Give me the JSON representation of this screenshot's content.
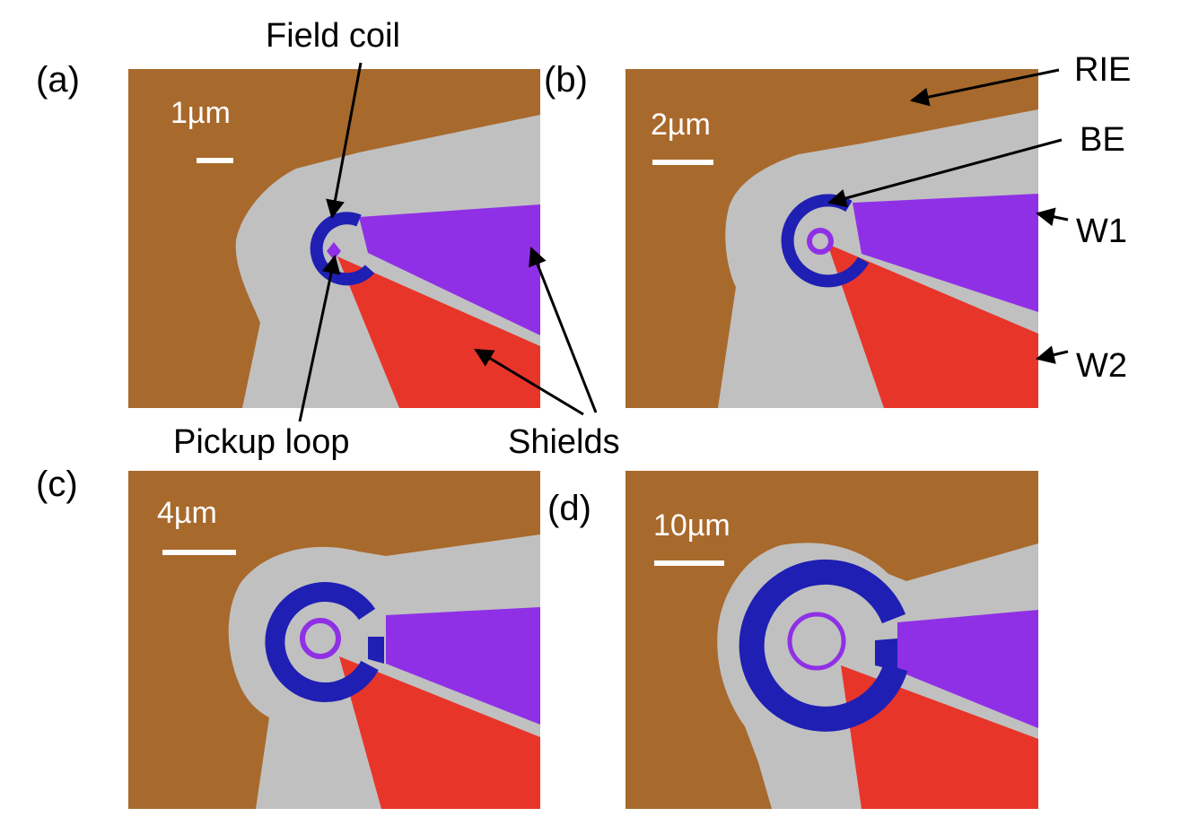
{
  "colors": {
    "rie": "#a8692c",
    "be": "#c0c0c0",
    "field_coil": "#1f1fb4",
    "w1": "#9030e6",
    "w2": "#e8352a",
    "scale_bar": "#ffffff"
  },
  "panels": [
    {
      "label": "(a)",
      "scale": "1µm"
    },
    {
      "label": "(b)",
      "scale": "2µm"
    },
    {
      "label": "(c)",
      "scale": "4µm"
    },
    {
      "label": "(d)",
      "scale": "10µm"
    }
  ],
  "annotations": {
    "field_coil": "Field coil",
    "pickup_loop": "Pickup loop",
    "shields": "Shields",
    "rie": "RIE",
    "be": "BE",
    "w1": "W1",
    "w2": "W2"
  }
}
